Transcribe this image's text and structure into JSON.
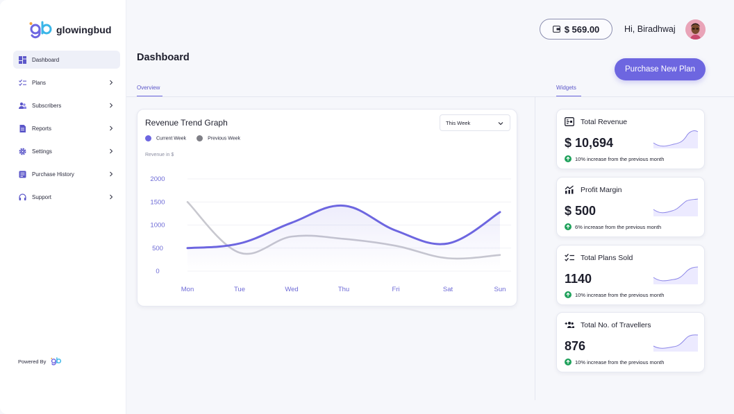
{
  "brand": {
    "name": "glowingbud"
  },
  "sidebar": {
    "items": [
      {
        "label": "Dashboard",
        "icon": "dashboard-icon",
        "active": true
      },
      {
        "label": "Plans",
        "icon": "checklist-icon"
      },
      {
        "label": "Subscribers",
        "icon": "users-icon"
      },
      {
        "label": "Reports",
        "icon": "report-icon"
      },
      {
        "label": "Settings",
        "icon": "gear-icon"
      },
      {
        "label": "Purchase History",
        "icon": "history-icon"
      },
      {
        "label": "Support",
        "icon": "headphones-icon"
      }
    ],
    "powered_by": "Powered By"
  },
  "header": {
    "balance": "$ 569.00",
    "greeting": "Hi, Biradhwaj"
  },
  "main": {
    "title": "Dashboard",
    "purchase_button": "Purchase New Plan",
    "tabs": {
      "overview": "Overview",
      "widgets": "Widgets"
    },
    "accent": "#6d66e0"
  },
  "chart": {
    "title": "Revenue Trend Graph",
    "range_select": "This Week",
    "ylabel": "Revenue in $"
  },
  "chart_data": {
    "type": "line",
    "title": "Revenue Trend Graph",
    "ylabel": "Revenue in $",
    "x": [
      "Mon",
      "Tue",
      "Wed",
      "Thu",
      "Fri",
      "Sat",
      "Sun"
    ],
    "yticks": [
      2000,
      1500,
      1000,
      500,
      0
    ],
    "ylim": [
      0,
      2000
    ],
    "legend": "top-left",
    "series": [
      {
        "name": "Current Week",
        "color": "#6d66e0",
        "values": [
          500,
          600,
          1050,
          1420,
          880,
          600,
          1280
        ]
      },
      {
        "name": "Previous Week",
        "color": "#c8c8cf",
        "values": [
          1500,
          400,
          750,
          700,
          550,
          280,
          350
        ]
      }
    ]
  },
  "widgets": [
    {
      "title": "Total Revenue",
      "icon": "wallet-icon",
      "value": "$ 10,694",
      "note": "10% increase from the previous month"
    },
    {
      "title": "Profit Margin",
      "icon": "growth-chart-icon",
      "value": "$ 500",
      "note": "6% increase from the previous month"
    },
    {
      "title": "Total Plans Sold",
      "icon": "checklist-icon",
      "value": "1140",
      "note": "10% increase from the previous month"
    },
    {
      "title": "Total No. of Travellers",
      "icon": "add-users-icon",
      "value": "876",
      "note": "10% increase from the previous month"
    }
  ]
}
